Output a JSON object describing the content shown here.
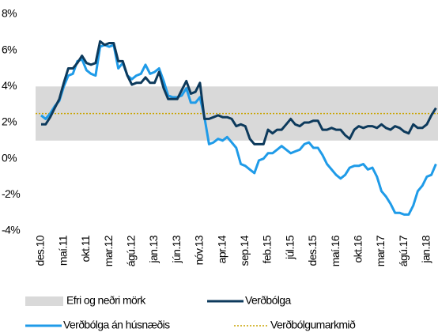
{
  "chart_data": {
    "type": "line",
    "categories": [
      "des.10",
      null,
      null,
      null,
      null,
      "maí.11",
      null,
      null,
      null,
      null,
      "okt.11",
      null,
      null,
      null,
      null,
      "mar.12",
      null,
      null,
      null,
      null,
      "ágú.12",
      null,
      null,
      null,
      null,
      "jan.13",
      null,
      null,
      null,
      null,
      "jún.13",
      null,
      null,
      null,
      null,
      "nóv.13",
      null,
      null,
      null,
      null,
      "apr.14",
      null,
      null,
      null,
      null,
      "sep.14",
      null,
      null,
      null,
      null,
      "feb.15",
      null,
      null,
      null,
      null,
      "júl.15",
      null,
      null,
      null,
      null,
      "des.15",
      null,
      null,
      null,
      null,
      "maí.16",
      null,
      null,
      null,
      null,
      "okt.16",
      null,
      null,
      null,
      null,
      "mar.17",
      null,
      null,
      null,
      null,
      "ágú.17",
      null,
      null,
      null,
      null,
      "jan.18",
      null,
      null
    ],
    "series": [
      {
        "name": "Verðbólga",
        "color": "#0d3a5c",
        "values": [
          1.9,
          1.9,
          2.3,
          2.8,
          3.3,
          4.2,
          5.0,
          5.0,
          5.3,
          5.7,
          5.3,
          5.2,
          5.3,
          6.5,
          6.3,
          6.4,
          6.4,
          5.4,
          5.4,
          4.6,
          4.1,
          4.2,
          4.2,
          4.5,
          4.2,
          4.2,
          4.8,
          3.9,
          3.3,
          3.3,
          3.3,
          3.8,
          4.3,
          3.6,
          3.7,
          4.2,
          2.2,
          2.2,
          2.3,
          2.4,
          2.3,
          2.3,
          2.2,
          1.8,
          1.9,
          1.8,
          1.1,
          0.8,
          0.8,
          0.8,
          1.6,
          1.4,
          1.6,
          1.6,
          1.9,
          2.2,
          1.9,
          1.8,
          2.0,
          2.0,
          2.1,
          2.1,
          1.6,
          1.6,
          1.7,
          1.6,
          1.6,
          1.3,
          1.1,
          1.6,
          1.8,
          1.7,
          1.8,
          1.8,
          1.7,
          1.9,
          1.7,
          1.6,
          1.8,
          1.7,
          1.5,
          1.4,
          1.9,
          1.7,
          1.7,
          1.9,
          2.4,
          2.8
        ]
      },
      {
        "name": "Verðbólga án húsnæðis",
        "color": "#1f9be8",
        "values": [
          2.4,
          2.2,
          2.5,
          2.9,
          3.2,
          4.0,
          4.6,
          4.7,
          5.4,
          5.5,
          4.9,
          4.7,
          4.6,
          6.2,
          6.3,
          6.2,
          6.3,
          5.0,
          5.3,
          4.6,
          4.4,
          4.6,
          4.7,
          5.2,
          4.7,
          4.8,
          5.0,
          4.3,
          3.5,
          3.4,
          3.4,
          3.5,
          3.9,
          3.1,
          3.1,
          3.4,
          2.3,
          0.8,
          0.9,
          1.1,
          1.0,
          1.2,
          0.9,
          0.6,
          -0.3,
          -0.4,
          -0.6,
          -0.8,
          -0.1,
          0.0,
          0.3,
          0.3,
          0.5,
          0.7,
          0.5,
          0.3,
          0.4,
          0.5,
          0.8,
          0.9,
          0.6,
          0.6,
          0.2,
          -0.3,
          -0.6,
          -0.9,
          -1.1,
          -0.9,
          -0.5,
          -0.4,
          -0.4,
          -0.3,
          -0.6,
          -0.5,
          -1.0,
          -1.8,
          -2.1,
          -2.5,
          -3.0,
          -3.0,
          -3.1,
          -3.1,
          -2.6,
          -1.8,
          -1.5,
          -1.0,
          -0.9,
          -0.3
        ]
      }
    ],
    "band": {
      "name": "Efri og neðri mörk",
      "lower": 1,
      "upper": 4,
      "color": "#d9d9d9"
    },
    "target": {
      "name": "Verðbólgumarkmið",
      "value": 2.5,
      "color": "#c9a400"
    },
    "ylim": [
      -4,
      8
    ],
    "yticks": [
      {
        "value": -4,
        "label": "-4%"
      },
      {
        "value": -2,
        "label": "-2%"
      },
      {
        "value": 0,
        "label": "0%"
      },
      {
        "value": 2,
        "label": "2%"
      },
      {
        "value": 4,
        "label": "4%"
      },
      {
        "value": 6,
        "label": "6%"
      },
      {
        "value": 8,
        "label": "8%"
      }
    ]
  }
}
